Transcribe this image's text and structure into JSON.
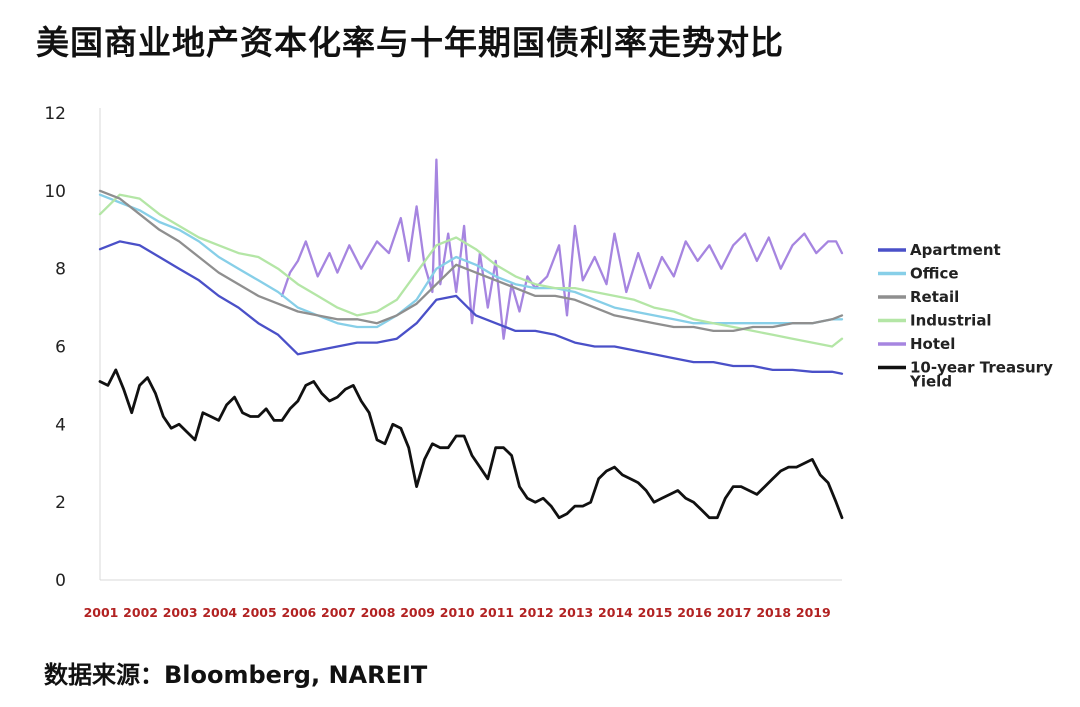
{
  "title": "美国商业地产资本化率与十年期国债利率走势对比",
  "source": "数据来源：Bloomberg, NAREIT",
  "chart_data": {
    "type": "line",
    "x_start": 2001,
    "x_end": 2019.75,
    "xticks": [
      "2001",
      "2002",
      "2003",
      "2004",
      "2005",
      "2006",
      "2007",
      "2008",
      "2009",
      "2010",
      "2011",
      "2012",
      "2013",
      "2014",
      "2015",
      "2016",
      "2017",
      "2018",
      "2019"
    ],
    "ylim": [
      0,
      12
    ],
    "yticks": [
      "0",
      "2",
      "4",
      "6",
      "8",
      "10",
      "12"
    ],
    "grid": false,
    "legend_position": "right",
    "series": [
      {
        "name": "Apartment",
        "color": "#4a50c8",
        "x": [
          2001,
          2001.5,
          2002,
          2002.5,
          2003,
          2003.5,
          2004,
          2004.5,
          2005,
          2005.5,
          2006,
          2006.5,
          2007,
          2007.5,
          2008,
          2008.5,
          2009,
          2009.5,
          2010,
          2010.5,
          2011,
          2011.5,
          2012,
          2012.5,
          2013,
          2013.5,
          2014,
          2014.5,
          2015,
          2015.5,
          2016,
          2016.5,
          2017,
          2017.5,
          2018,
          2018.5,
          2019,
          2019.5,
          2019.75
        ],
        "values": [
          8.5,
          8.7,
          8.6,
          8.3,
          8.0,
          7.7,
          7.3,
          7.0,
          6.6,
          6.3,
          5.8,
          5.9,
          6.0,
          6.1,
          6.1,
          6.2,
          6.6,
          7.2,
          7.3,
          6.8,
          6.6,
          6.4,
          6.4,
          6.3,
          6.1,
          6.0,
          6.0,
          5.9,
          5.8,
          5.7,
          5.6,
          5.6,
          5.5,
          5.5,
          5.4,
          5.4,
          5.35,
          5.35,
          5.3
        ]
      },
      {
        "name": "Office",
        "color": "#87cfe8",
        "x": [
          2001,
          2001.5,
          2002,
          2002.5,
          2003,
          2003.5,
          2004,
          2004.5,
          2005,
          2005.5,
          2006,
          2006.5,
          2007,
          2007.5,
          2008,
          2008.5,
          2009,
          2009.5,
          2010,
          2010.5,
          2011,
          2011.5,
          2012,
          2012.5,
          2013,
          2013.5,
          2014,
          2014.5,
          2015,
          2015.5,
          2016,
          2016.5,
          2017,
          2017.5,
          2018,
          2018.5,
          2019,
          2019.5,
          2019.75
        ],
        "values": [
          9.9,
          9.7,
          9.5,
          9.2,
          9.0,
          8.7,
          8.3,
          8.0,
          7.7,
          7.4,
          7.0,
          6.8,
          6.6,
          6.5,
          6.5,
          6.8,
          7.2,
          8.0,
          8.3,
          8.1,
          7.8,
          7.6,
          7.5,
          7.5,
          7.4,
          7.2,
          7.0,
          6.9,
          6.8,
          6.7,
          6.6,
          6.6,
          6.6,
          6.6,
          6.6,
          6.6,
          6.6,
          6.7,
          6.7
        ]
      },
      {
        "name": "Retail",
        "color": "#8f8f8f",
        "x": [
          2001,
          2001.5,
          2002,
          2002.5,
          2003,
          2003.5,
          2004,
          2004.5,
          2005,
          2005.5,
          2006,
          2006.5,
          2007,
          2007.5,
          2008,
          2008.5,
          2009,
          2009.5,
          2010,
          2010.5,
          2011,
          2011.5,
          2012,
          2012.5,
          2013,
          2013.5,
          2014,
          2014.5,
          2015,
          2015.5,
          2016,
          2016.5,
          2017,
          2017.5,
          2018,
          2018.5,
          2019,
          2019.5,
          2019.75
        ],
        "values": [
          10.0,
          9.8,
          9.4,
          9.0,
          8.7,
          8.3,
          7.9,
          7.6,
          7.3,
          7.1,
          6.9,
          6.8,
          6.7,
          6.7,
          6.6,
          6.8,
          7.1,
          7.6,
          8.1,
          7.9,
          7.7,
          7.5,
          7.3,
          7.3,
          7.2,
          7.0,
          6.8,
          6.7,
          6.6,
          6.5,
          6.5,
          6.4,
          6.4,
          6.5,
          6.5,
          6.6,
          6.6,
          6.7,
          6.8
        ]
      },
      {
        "name": "Industrial",
        "color": "#b4e6a6",
        "x": [
          2001,
          2001.5,
          2002,
          2002.5,
          2003,
          2003.5,
          2004,
          2004.5,
          2005,
          2005.5,
          2006,
          2006.5,
          2007,
          2007.5,
          2008,
          2008.5,
          2009,
          2009.5,
          2010,
          2010.5,
          2011,
          2011.5,
          2012,
          2012.5,
          2013,
          2013.5,
          2014,
          2014.5,
          2015,
          2015.5,
          2016,
          2016.5,
          2017,
          2017.5,
          2018,
          2018.5,
          2019,
          2019.5,
          2019.75
        ],
        "values": [
          9.4,
          9.9,
          9.8,
          9.4,
          9.1,
          8.8,
          8.6,
          8.4,
          8.3,
          8.0,
          7.6,
          7.3,
          7.0,
          6.8,
          6.9,
          7.2,
          7.9,
          8.6,
          8.8,
          8.5,
          8.1,
          7.8,
          7.6,
          7.5,
          7.5,
          7.4,
          7.3,
          7.2,
          7.0,
          6.9,
          6.7,
          6.6,
          6.5,
          6.4,
          6.3,
          6.2,
          6.1,
          6.0,
          6.2
        ]
      },
      {
        "name": "Hotel",
        "color": "#a685e0",
        "x": [
          2005.6,
          2005.8,
          2006.0,
          2006.2,
          2006.5,
          2006.8,
          2007.0,
          2007.3,
          2007.6,
          2008.0,
          2008.3,
          2008.6,
          2008.8,
          2009.0,
          2009.2,
          2009.4,
          2009.5,
          2009.6,
          2009.8,
          2010.0,
          2010.2,
          2010.4,
          2010.6,
          2010.8,
          2011.0,
          2011.2,
          2011.4,
          2011.6,
          2011.8,
          2012.0,
          2012.3,
          2012.6,
          2012.8,
          2013.0,
          2013.2,
          2013.5,
          2013.8,
          2014.0,
          2014.3,
          2014.6,
          2014.9,
          2015.2,
          2015.5,
          2015.8,
          2016.1,
          2016.4,
          2016.7,
          2017.0,
          2017.3,
          2017.6,
          2017.9,
          2018.2,
          2018.5,
          2018.8,
          2019.1,
          2019.4,
          2019.6,
          2019.75
        ],
        "values": [
          7.3,
          7.9,
          8.2,
          8.7,
          7.8,
          8.4,
          7.9,
          8.6,
          8.0,
          8.7,
          8.4,
          9.3,
          8.2,
          9.6,
          8.1,
          7.4,
          10.8,
          7.6,
          8.9,
          7.4,
          9.1,
          6.6,
          8.4,
          7.0,
          8.2,
          6.2,
          7.6,
          6.9,
          7.8,
          7.5,
          7.8,
          8.6,
          6.8,
          9.1,
          7.7,
          8.3,
          7.6,
          8.9,
          7.4,
          8.4,
          7.5,
          8.3,
          7.8,
          8.7,
          8.2,
          8.6,
          8.0,
          8.6,
          8.9,
          8.2,
          8.8,
          8.0,
          8.6,
          8.9,
          8.4,
          8.7,
          8.7,
          8.4
        ]
      },
      {
        "name": "10-year Treasury Yield",
        "color": "#111111",
        "x": [
          2001,
          2001.2,
          2001.4,
          2001.6,
          2001.8,
          2002.0,
          2002.2,
          2002.4,
          2002.6,
          2002.8,
          2003.0,
          2003.2,
          2003.4,
          2003.6,
          2003.8,
          2004.0,
          2004.2,
          2004.4,
          2004.6,
          2004.8,
          2005.0,
          2005.2,
          2005.4,
          2005.6,
          2005.8,
          2006.0,
          2006.2,
          2006.4,
          2006.6,
          2006.8,
          2007.0,
          2007.2,
          2007.4,
          2007.6,
          2007.8,
          2008.0,
          2008.2,
          2008.4,
          2008.6,
          2008.8,
          2009.0,
          2009.2,
          2009.4,
          2009.6,
          2009.8,
          2010.0,
          2010.2,
          2010.4,
          2010.6,
          2010.8,
          2011.0,
          2011.2,
          2011.4,
          2011.6,
          2011.8,
          2012.0,
          2012.2,
          2012.4,
          2012.6,
          2012.8,
          2013.0,
          2013.2,
          2013.4,
          2013.6,
          2013.8,
          2014.0,
          2014.2,
          2014.4,
          2014.6,
          2014.8,
          2015.0,
          2015.2,
          2015.4,
          2015.6,
          2015.8,
          2016.0,
          2016.2,
          2016.4,
          2016.6,
          2016.8,
          2017.0,
          2017.2,
          2017.4,
          2017.6,
          2017.8,
          2018.0,
          2018.2,
          2018.4,
          2018.6,
          2018.8,
          2019.0,
          2019.2,
          2019.4,
          2019.6,
          2019.75
        ],
        "values": [
          5.1,
          5.0,
          5.4,
          4.9,
          4.3,
          5.0,
          5.2,
          4.8,
          4.2,
          3.9,
          4.0,
          3.8,
          3.6,
          4.3,
          4.2,
          4.1,
          4.5,
          4.7,
          4.3,
          4.2,
          4.2,
          4.4,
          4.1,
          4.1,
          4.4,
          4.6,
          5.0,
          5.1,
          4.8,
          4.6,
          4.7,
          4.9,
          5.0,
          4.6,
          4.3,
          3.6,
          3.5,
          4.0,
          3.9,
          3.4,
          2.4,
          3.1,
          3.5,
          3.4,
          3.4,
          3.7,
          3.7,
          3.2,
          2.9,
          2.6,
          3.4,
          3.4,
          3.2,
          2.4,
          2.1,
          2.0,
          2.1,
          1.9,
          1.6,
          1.7,
          1.9,
          1.9,
          2.0,
          2.6,
          2.8,
          2.9,
          2.7,
          2.6,
          2.5,
          2.3,
          2.0,
          2.1,
          2.2,
          2.3,
          2.1,
          2.0,
          1.8,
          1.6,
          1.6,
          2.1,
          2.4,
          2.4,
          2.3,
          2.2,
          2.4,
          2.6,
          2.8,
          2.9,
          2.9,
          3.0,
          3.1,
          2.7,
          2.5,
          2.0,
          1.6
        ]
      }
    ]
  }
}
